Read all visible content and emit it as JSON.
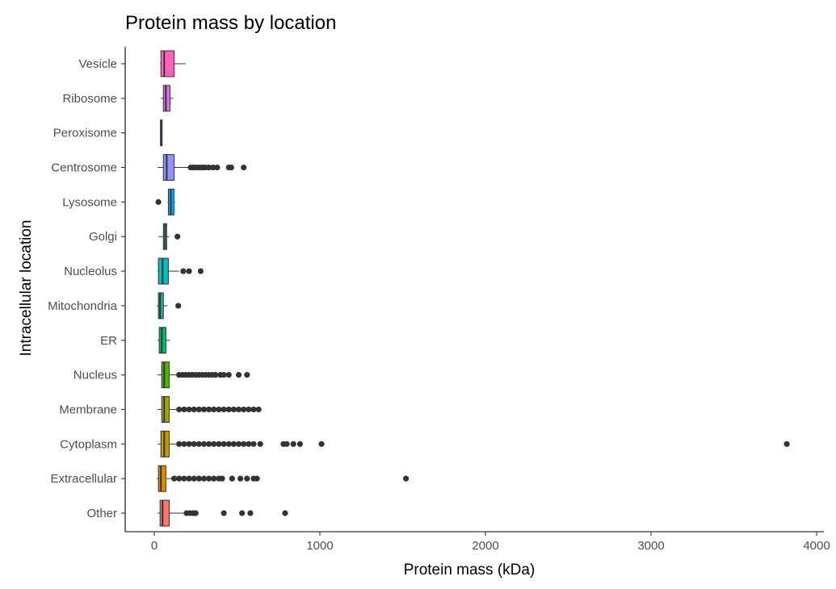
{
  "chart_data": {
    "type": "boxplot",
    "orientation": "horizontal",
    "title": "Protein mass by location",
    "xlabel": "Protein mass (kDa)",
    "ylabel": "Intracellular location",
    "xlim": [
      -170,
      4000
    ],
    "xticks": [
      0,
      1000,
      2000,
      3000,
      4000
    ],
    "grid": false,
    "legend": "none",
    "categories": [
      "Vesicle",
      "Ribosome",
      "Peroxisome",
      "Centrosome",
      "Lysosome",
      "Golgi",
      "Nucleolus",
      "Mitochondria",
      "ER",
      "Nucleus",
      "Membrane",
      "Cytoplasm",
      "Extracellular",
      "Other"
    ],
    "series": [
      {
        "category": "Vesicle",
        "color": "#ff62bc",
        "whisker_low": 35,
        "q1": 40,
        "median": 60,
        "q3": 120,
        "whisker_high": 190,
        "outliers": []
      },
      {
        "category": "Ribosome",
        "color": "#e76bf3",
        "whisker_low": 40,
        "q1": 55,
        "median": 70,
        "q3": 95,
        "whisker_high": 115,
        "outliers": []
      },
      {
        "category": "Peroxisome",
        "color": "#c77cff",
        "whisker_low": 38,
        "q1": 38,
        "median": 40,
        "q3": 42,
        "whisker_high": 42,
        "outliers": []
      },
      {
        "category": "Centrosome",
        "color": "#9590ff",
        "whisker_low": 20,
        "q1": 55,
        "median": 75,
        "q3": 120,
        "whisker_high": 210,
        "outliers": [
          220,
          235,
          250,
          265,
          280,
          295,
          310,
          330,
          355,
          380,
          450,
          465,
          540
        ]
      },
      {
        "category": "Lysosome",
        "color": "#00a9ff",
        "whisker_low": 80,
        "q1": 85,
        "median": 100,
        "q3": 120,
        "whisker_high": 125,
        "outliers": [
          25
        ]
      },
      {
        "category": "Golgi",
        "color": "#00b8e7",
        "whisker_low": 25,
        "q1": 55,
        "median": 65,
        "q3": 75,
        "whisker_high": 90,
        "outliers": [
          140
        ]
      },
      {
        "category": "Nucleolus",
        "color": "#00bfc4",
        "whisker_low": 20,
        "q1": 25,
        "median": 50,
        "q3": 85,
        "whisker_high": 150,
        "outliers": [
          175,
          210,
          280
        ]
      },
      {
        "category": "Mitochondria",
        "color": "#00c19a",
        "whisker_low": 15,
        "q1": 25,
        "median": 35,
        "q3": 55,
        "whisker_high": 80,
        "outliers": [
          145
        ]
      },
      {
        "category": "ER",
        "color": "#00be67",
        "whisker_low": 20,
        "q1": 30,
        "median": 45,
        "q3": 70,
        "whisker_high": 95,
        "outliers": []
      },
      {
        "category": "Nucleus",
        "color": "#53b400",
        "whisker_low": 20,
        "q1": 45,
        "median": 60,
        "q3": 90,
        "whisker_high": 140,
        "outliers": [
          150,
          170,
          190,
          210,
          230,
          250,
          270,
          290,
          310,
          330,
          350,
          370,
          400,
          420,
          450,
          510,
          560
        ]
      },
      {
        "category": "Membrane",
        "color": "#a3a500",
        "whisker_low": 20,
        "q1": 45,
        "median": 60,
        "q3": 90,
        "whisker_high": 140,
        "outliers": [
          150,
          180,
          210,
          240,
          270,
          300,
          330,
          360,
          390,
          420,
          450,
          480,
          510,
          540,
          570,
          600,
          630
        ]
      },
      {
        "category": "Cytoplasm",
        "color": "#c49a00",
        "whisker_low": 20,
        "q1": 40,
        "median": 60,
        "q3": 90,
        "whisker_high": 140,
        "outliers": [
          150,
          180,
          210,
          240,
          270,
          300,
          330,
          360,
          390,
          420,
          450,
          480,
          510,
          540,
          570,
          600,
          640,
          780,
          800,
          840,
          880,
          1010,
          3820
        ]
      },
      {
        "category": "Extracellular",
        "color": "#db8e00",
        "whisker_low": 15,
        "q1": 25,
        "median": 40,
        "q3": 70,
        "whisker_high": 110,
        "outliers": [
          120,
          150,
          180,
          210,
          240,
          270,
          300,
          330,
          360,
          390,
          410,
          470,
          520,
          560,
          600,
          620,
          1520
        ]
      },
      {
        "category": "Other",
        "color": "#f8766d",
        "whisker_low": 20,
        "q1": 35,
        "median": 50,
        "q3": 90,
        "whisker_high": 180,
        "outliers": [
          195,
          215,
          235,
          250,
          420,
          530,
          580,
          790
        ]
      }
    ]
  }
}
